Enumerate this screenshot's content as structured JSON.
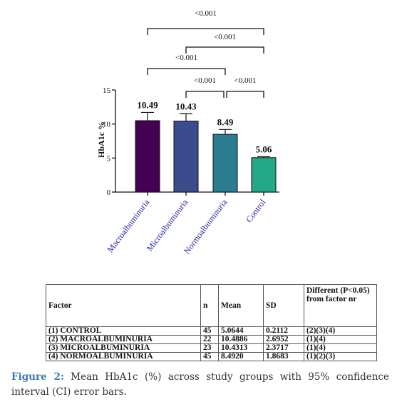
{
  "chart_data": {
    "type": "bar",
    "categories": [
      "Macroalbuminuria",
      "Microalbuminuria",
      "Normoalbuminuria",
      "Control"
    ],
    "values": [
      10.49,
      10.43,
      8.49,
      5.06
    ],
    "value_labels": [
      "10.49",
      "10.43",
      "8.49",
      "5.06"
    ],
    "error_upper": [
      11.7,
      11.5,
      9.2,
      5.2
    ],
    "colors": [
      "#440154",
      "#3b4b8c",
      "#2a7d8e",
      "#22a884"
    ],
    "ylabel": "HbA1c %",
    "ylim": [
      0,
      15
    ],
    "yticks": [
      "0",
      "5",
      "10",
      "15"
    ],
    "grid": false,
    "significance": [
      {
        "from": 0,
        "to": 3,
        "label": "<0.001"
      },
      {
        "from": 1,
        "to": 3,
        "label": "<0.001"
      },
      {
        "from": 0,
        "to": 2,
        "label": "<0.001"
      },
      {
        "from": 1,
        "to": 2,
        "label": "<0.001"
      },
      {
        "from": 2,
        "to": 3,
        "label": "<0.001"
      }
    ]
  },
  "table": {
    "headers": [
      "Factor",
      "n",
      "Mean",
      "SD",
      "Different (P<0.05) from factor nr"
    ],
    "rows": [
      [
        "(1) CONTROL",
        "45",
        "5.0644",
        "0.2112",
        "(2)(3)(4)"
      ],
      [
        "(2) MACROALBUMINURIA",
        "22",
        "10.4886",
        "2.6952",
        "(1)(4)"
      ],
      [
        "(3) MICROALBUMINURIA",
        "23",
        "10.4313",
        "2.3717",
        "(1)(4)"
      ],
      [
        "(4) NORMOALBUMINURIA",
        "45",
        "8.4920",
        "1.8683",
        "(1)(2)(3)"
      ]
    ]
  },
  "caption": {
    "label": "Figure 2:",
    "text": " Mean HbA1c (%) across study groups with 95% confidence interval (CI) error bars."
  }
}
